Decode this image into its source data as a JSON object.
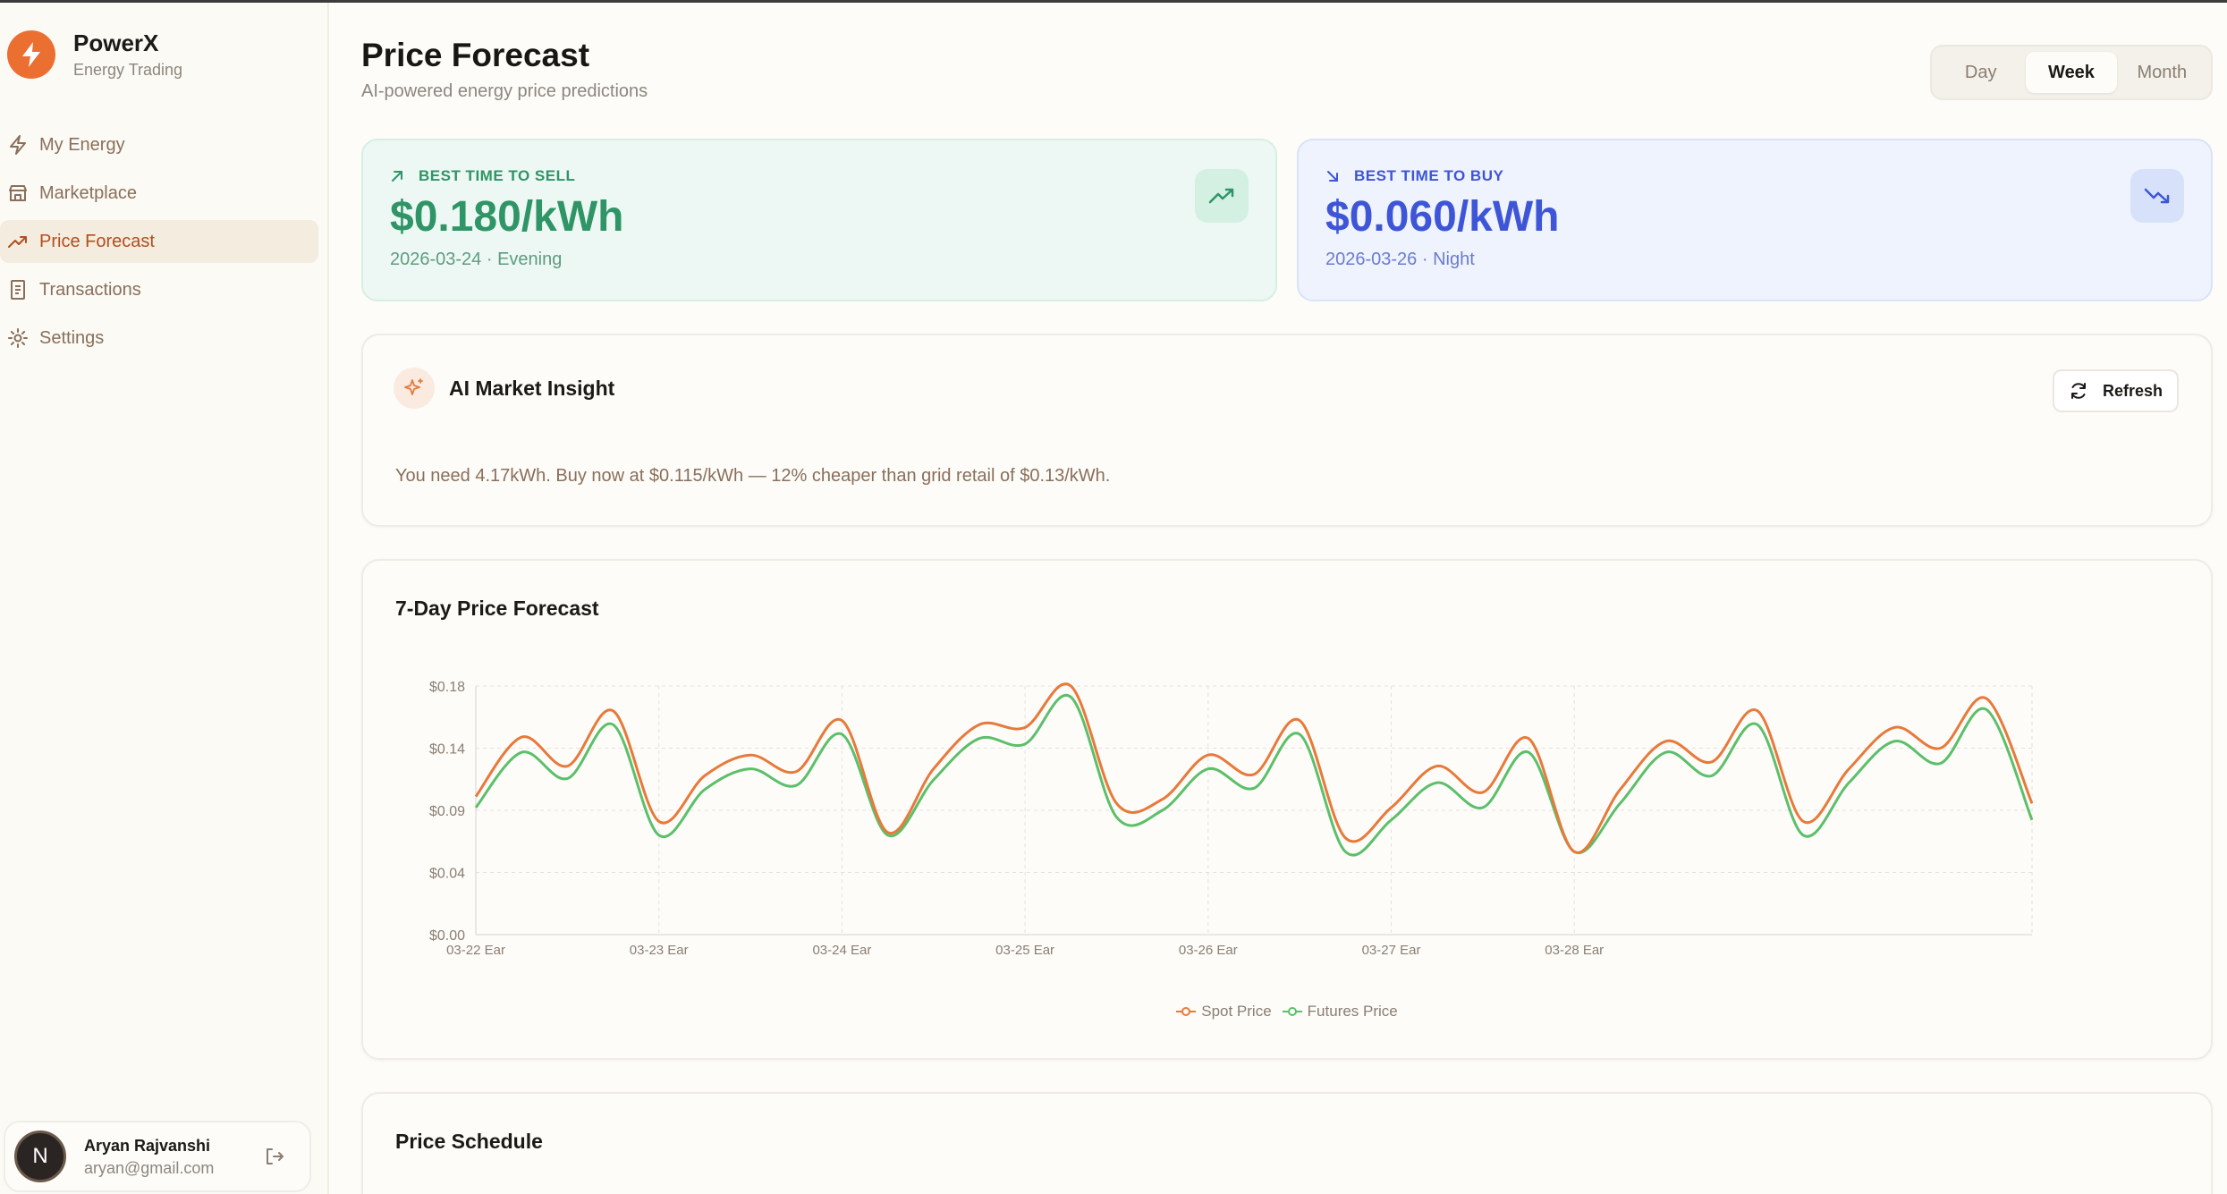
{
  "brand": {
    "name": "PowerX",
    "subtitle": "Energy Trading",
    "logo_icon": "bolt-icon",
    "accent": "#ec6f32"
  },
  "nav": [
    {
      "label": "My Energy",
      "icon": "bolt-icon",
      "active": false
    },
    {
      "label": "Marketplace",
      "icon": "store-icon",
      "active": false
    },
    {
      "label": "Price Forecast",
      "icon": "trend-up-icon",
      "active": true
    },
    {
      "label": "Transactions",
      "icon": "receipt-icon",
      "active": false
    },
    {
      "label": "Settings",
      "icon": "gear-icon",
      "active": false
    }
  ],
  "user": {
    "initial": "N",
    "name": "Aryan Rajvanshi",
    "email": "aryan@gmail.com"
  },
  "header": {
    "title": "Price Forecast",
    "subtitle": "AI-powered energy price predictions"
  },
  "range": {
    "options": [
      "Day",
      "Week",
      "Month"
    ],
    "selected": "Week"
  },
  "sell": {
    "label": "BEST TIME TO SELL",
    "value": "$0.180/kWh",
    "meta": "2026-03-24 · Evening",
    "color": "#2f9466"
  },
  "buy": {
    "label": "BEST TIME TO BUY",
    "value": "$0.060/kWh",
    "meta": "2026-03-26 · Night",
    "color": "#3e55d8"
  },
  "insight": {
    "title": "AI Market Insight",
    "refresh_label": "Refresh",
    "text": "You need 4.17kWh. Buy now at $0.115/kWh — 12% cheaper than grid retail of $0.13/kWh."
  },
  "forecast": {
    "title": "7-Day Price Forecast"
  },
  "schedule": {
    "title": "Price Schedule"
  },
  "chart_data": {
    "type": "line",
    "title": "7-Day Price Forecast",
    "y_ticks": [
      "$0.00",
      "$0.04",
      "$0.09",
      "$0.14",
      "$0.18"
    ],
    "y_tick_values": [
      0,
      0.045,
      0.09,
      0.135,
      0.18
    ],
    "ylim": [
      0,
      0.18
    ],
    "x_tick_labels": [
      "03-22 Ear",
      "03-23 Ear",
      "03-24 Ear",
      "03-25 Ear",
      "03-26 Ear",
      "03-27 Ear",
      "03-28 Ear"
    ],
    "x_tick_indices": [
      0,
      4,
      8,
      12,
      16,
      20,
      24
    ],
    "grid": true,
    "legend_position": "bottom",
    "series": [
      {
        "name": "Spot Price",
        "color": "#e8793a",
        "values": [
          0.1,
          0.143,
          0.122,
          0.162,
          0.082,
          0.115,
          0.13,
          0.118,
          0.155,
          0.074,
          0.12,
          0.152,
          0.15,
          0.18,
          0.095,
          0.098,
          0.13,
          0.116,
          0.155,
          0.07,
          0.092,
          0.122,
          0.103,
          0.142,
          0.06,
          0.105,
          0.14,
          0.125,
          0.162,
          0.082,
          0.12,
          0.15,
          0.135,
          0.171,
          0.095
        ]
      },
      {
        "name": "Futures Price",
        "color": "#5cbf6a",
        "values": [
          0.092,
          0.132,
          0.113,
          0.152,
          0.072,
          0.105,
          0.12,
          0.108,
          0.145,
          0.072,
          0.112,
          0.142,
          0.138,
          0.172,
          0.085,
          0.09,
          0.12,
          0.106,
          0.145,
          0.06,
          0.083,
          0.11,
          0.092,
          0.132,
          0.06,
          0.095,
          0.132,
          0.115,
          0.152,
          0.072,
          0.11,
          0.14,
          0.124,
          0.163,
          0.083
        ]
      }
    ]
  }
}
